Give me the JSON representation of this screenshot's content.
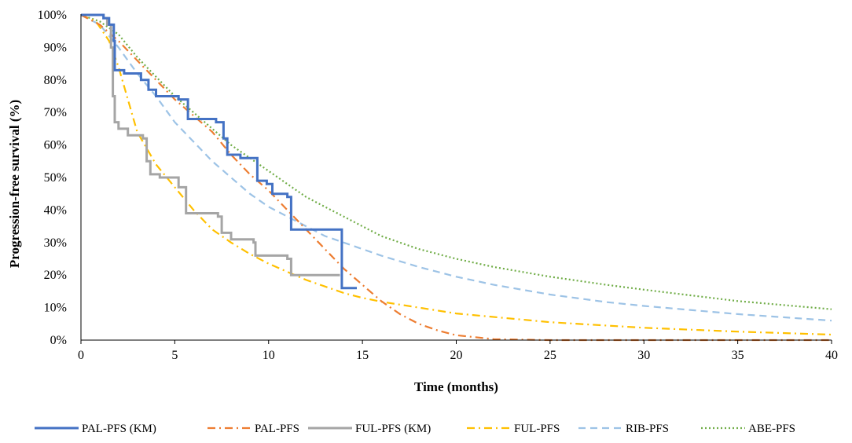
{
  "chart_data": {
    "type": "line",
    "title": "",
    "xlabel": "Time (months)",
    "ylabel": "Progression-free survival (%)",
    "xlim": [
      0,
      40
    ],
    "ylim": [
      0,
      100
    ],
    "xticks": [
      0,
      5,
      10,
      15,
      20,
      25,
      30,
      35,
      40
    ],
    "yticks": [
      0,
      10,
      20,
      30,
      40,
      50,
      60,
      70,
      80,
      90,
      100
    ],
    "ytick_labels": [
      "0%",
      "10%",
      "20%",
      "30%",
      "40%",
      "50%",
      "60%",
      "70%",
      "80%",
      "90%",
      "100%"
    ],
    "grid": false,
    "legend_position": "bottom",
    "series": [
      {
        "name": "PAL-PFS (KM)",
        "color": "#4472C4",
        "style": "solid",
        "step": true,
        "points": [
          [
            0,
            100
          ],
          [
            0.8,
            100
          ],
          [
            1.2,
            99
          ],
          [
            1.5,
            97
          ],
          [
            1.75,
            92
          ],
          [
            1.8,
            83
          ],
          [
            2.3,
            82
          ],
          [
            3.2,
            80
          ],
          [
            3.6,
            77
          ],
          [
            4,
            75
          ],
          [
            5.2,
            74
          ],
          [
            5.7,
            68
          ],
          [
            7.2,
            67
          ],
          [
            7.6,
            62
          ],
          [
            7.8,
            57
          ],
          [
            8.5,
            56
          ],
          [
            9.4,
            49
          ],
          [
            9.9,
            48
          ],
          [
            10.2,
            45
          ],
          [
            11,
            44
          ],
          [
            11.2,
            34
          ],
          [
            13.9,
            34
          ],
          [
            13.9,
            16
          ],
          [
            14.7,
            16
          ]
        ]
      },
      {
        "name": "PAL-PFS",
        "color": "#ED7D31",
        "style": "dashdot",
        "step": false,
        "points": [
          [
            0,
            100
          ],
          [
            1,
            97
          ],
          [
            2,
            92
          ],
          [
            3,
            86
          ],
          [
            4,
            80
          ],
          [
            5,
            74
          ],
          [
            6,
            69
          ],
          [
            7,
            64
          ],
          [
            8,
            57
          ],
          [
            9,
            51
          ],
          [
            10,
            46
          ],
          [
            11,
            40
          ],
          [
            12,
            34
          ],
          [
            13,
            28
          ],
          [
            14,
            22
          ],
          [
            15,
            17
          ],
          [
            16,
            12
          ],
          [
            17,
            8
          ],
          [
            18,
            5
          ],
          [
            19,
            3
          ],
          [
            20,
            1.5
          ],
          [
            22,
            0.3
          ],
          [
            25,
            0
          ],
          [
            40,
            0
          ]
        ]
      },
      {
        "name": "FUL-PFS (KM)",
        "color": "#A5A5A5",
        "style": "solid",
        "step": true,
        "points": [
          [
            0,
            100
          ],
          [
            0.8,
            100
          ],
          [
            1.2,
            99
          ],
          [
            1.4,
            97
          ],
          [
            1.6,
            90
          ],
          [
            1.7,
            75
          ],
          [
            1.8,
            67
          ],
          [
            2,
            65
          ],
          [
            2.5,
            63
          ],
          [
            3.3,
            62
          ],
          [
            3.5,
            55
          ],
          [
            3.7,
            51
          ],
          [
            4.2,
            50
          ],
          [
            5.2,
            47
          ],
          [
            5.6,
            39
          ],
          [
            7.3,
            38
          ],
          [
            7.5,
            33
          ],
          [
            8,
            31
          ],
          [
            9.2,
            30
          ],
          [
            9.3,
            26
          ],
          [
            11,
            25
          ],
          [
            11.2,
            20
          ],
          [
            13.8,
            20
          ]
        ]
      },
      {
        "name": "FUL-PFS",
        "color": "#FFC000",
        "style": "dashdot",
        "step": false,
        "points": [
          [
            0,
            100
          ],
          [
            0.8,
            98
          ],
          [
            1.5,
            92
          ],
          [
            2,
            84
          ],
          [
            3,
            64
          ],
          [
            4,
            54
          ],
          [
            5,
            47
          ],
          [
            6,
            40
          ],
          [
            7,
            34
          ],
          [
            8,
            30
          ],
          [
            9,
            26.5
          ],
          [
            10,
            23.5
          ],
          [
            11,
            21
          ],
          [
            12,
            18.5
          ],
          [
            13,
            16.5
          ],
          [
            14,
            14.5
          ],
          [
            15,
            13
          ],
          [
            16,
            11.8
          ],
          [
            18,
            10
          ],
          [
            20,
            8.2
          ],
          [
            25,
            5.5
          ],
          [
            30,
            3.8
          ],
          [
            35,
            2.6
          ],
          [
            40,
            1.7
          ]
        ]
      },
      {
        "name": "RIB-PFS",
        "color": "#9DC3E6",
        "style": "dashed",
        "step": false,
        "points": [
          [
            0,
            100
          ],
          [
            1,
            97
          ],
          [
            2,
            90
          ],
          [
            3,
            82
          ],
          [
            4,
            75
          ],
          [
            5,
            67
          ],
          [
            6,
            61
          ],
          [
            7,
            55
          ],
          [
            8,
            50
          ],
          [
            9,
            45
          ],
          [
            10,
            41
          ],
          [
            11,
            38
          ],
          [
            12,
            35
          ],
          [
            13,
            32
          ],
          [
            14,
            30
          ],
          [
            15,
            28
          ],
          [
            16,
            26
          ],
          [
            18,
            22.5
          ],
          [
            20,
            19.5
          ],
          [
            22,
            17
          ],
          [
            25,
            14
          ],
          [
            28,
            11.7
          ],
          [
            30,
            10.5
          ],
          [
            35,
            8
          ],
          [
            40,
            6
          ]
        ]
      },
      {
        "name": "ABE-PFS",
        "color": "#70AD47",
        "style": "dotted",
        "step": false,
        "points": [
          [
            0,
            100
          ],
          [
            1,
            98
          ],
          [
            2,
            94
          ],
          [
            3,
            87
          ],
          [
            4,
            81
          ],
          [
            5,
            75
          ],
          [
            6,
            70
          ],
          [
            7,
            65
          ],
          [
            8,
            60
          ],
          [
            9,
            56
          ],
          [
            10,
            52
          ],
          [
            11,
            48
          ],
          [
            12,
            44
          ],
          [
            13,
            41
          ],
          [
            14,
            38
          ],
          [
            15,
            35
          ],
          [
            16,
            32
          ],
          [
            18,
            28
          ],
          [
            20,
            25
          ],
          [
            22,
            22.5
          ],
          [
            25,
            19.5
          ],
          [
            28,
            17
          ],
          [
            30,
            15.5
          ],
          [
            35,
            12
          ],
          [
            40,
            9.5
          ]
        ]
      }
    ]
  }
}
